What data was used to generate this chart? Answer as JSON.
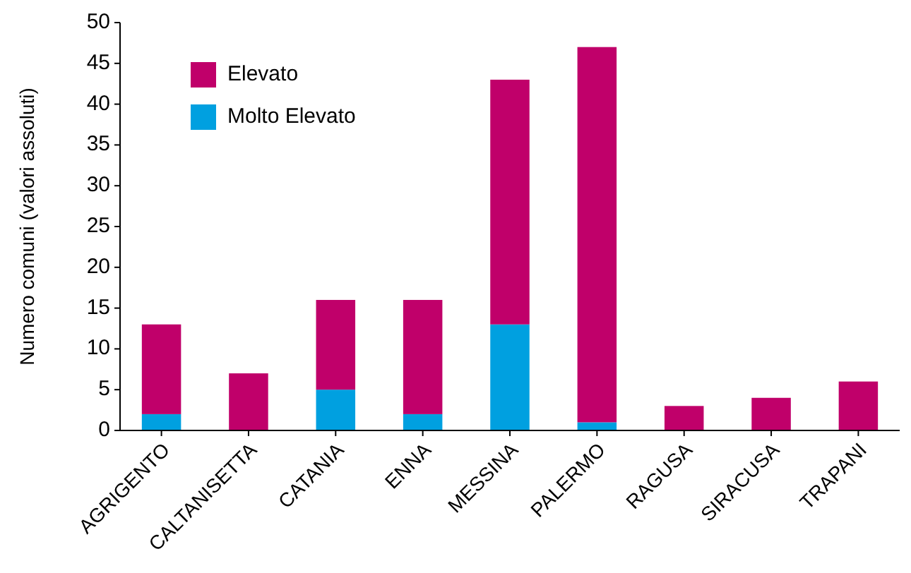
{
  "chart_data": {
    "type": "bar",
    "stacked": true,
    "ylabel": "Numero comuni (valori assoluti)",
    "categories": [
      "AGRIGENTO",
      "CALTANISETTA",
      "CATANIA",
      "ENNA",
      "MESSINA",
      "PALERMO",
      "RAGUSA",
      "SIRACUSA",
      "TRAPANI"
    ],
    "series": [
      {
        "name": "Molto Elevato",
        "color": "#00a0e0",
        "values": [
          2,
          0,
          5,
          2,
          13,
          1,
          0,
          0,
          0
        ]
      },
      {
        "name": "Elevato",
        "color": "#c0006a",
        "values": [
          11,
          7,
          11,
          14,
          30,
          46,
          3,
          4,
          6
        ]
      }
    ],
    "ylim": [
      0,
      50
    ],
    "yticks": [
      0,
      5,
      10,
      15,
      20,
      25,
      30,
      35,
      40,
      45,
      50
    ],
    "legend": "top left"
  }
}
